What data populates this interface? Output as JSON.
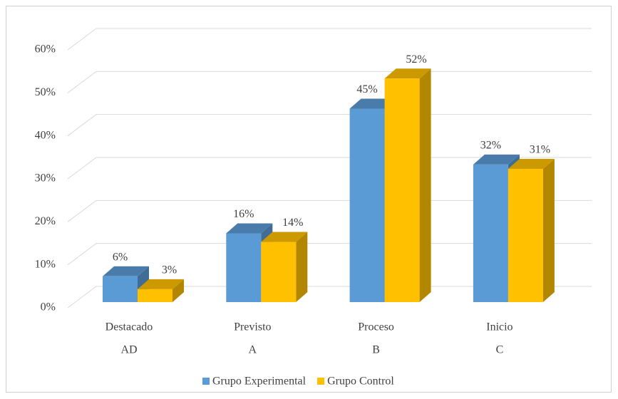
{
  "chart_data": {
    "type": "bar3d",
    "categories": [
      [
        "Destacado",
        "AD"
      ],
      [
        "Previsto",
        "A"
      ],
      [
        "Proceso",
        "B"
      ],
      [
        "Inicio",
        "C"
      ]
    ],
    "series": [
      {
        "name": "Grupo Experimental",
        "color": "#5b9bd5",
        "values": [
          6,
          16,
          45,
          32
        ],
        "value_labels": [
          "6%",
          "16%",
          "45%",
          "32%"
        ]
      },
      {
        "name": "Grupo Control",
        "color": "#ffc000",
        "values": [
          3,
          14,
          52,
          31
        ],
        "value_labels": [
          "3%",
          "14%",
          "52%",
          "31%"
        ]
      }
    ],
    "ylim": [
      0,
      60
    ],
    "yticks": [
      {
        "value": 0,
        "label": "0%"
      },
      {
        "value": 10,
        "label": "10%"
      },
      {
        "value": 20,
        "label": "20%"
      },
      {
        "value": 30,
        "label": "30%"
      },
      {
        "value": 40,
        "label": "40%"
      },
      {
        "value": 50,
        "label": "50%"
      },
      {
        "value": 60,
        "label": "60%"
      }
    ],
    "grid": true,
    "legend": "bottom"
  }
}
